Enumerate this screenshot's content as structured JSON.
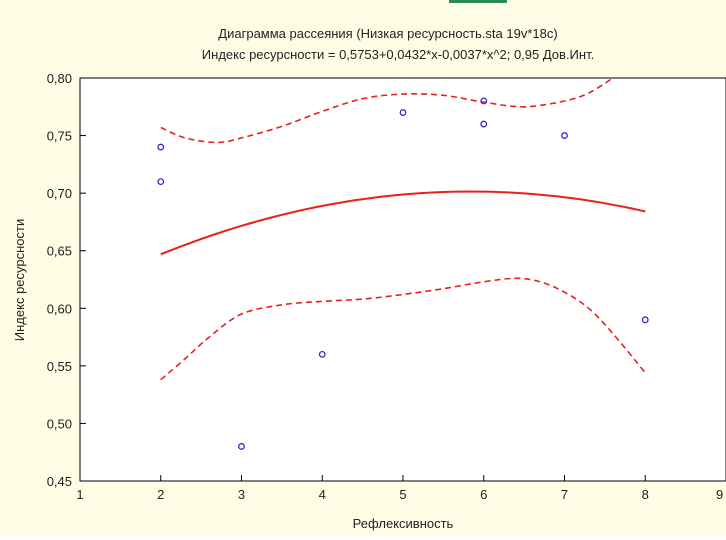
{
  "chart_data": {
    "type": "scatter",
    "title": "Диаграмма рассеяния (Низкая ресурсность.sta 19v*18c)",
    "subtitle": "Индекс ресурсности = 0,5753+0,0432*x-0,0037*x^2; 0,95 Дов.Инт.",
    "xlabel": "Рефлексивность",
    "ylabel": "Индекс ресурсности",
    "xlim": [
      1,
      9
    ],
    "ylim": [
      0.45,
      0.8
    ],
    "x_ticks": [
      1,
      2,
      3,
      4,
      5,
      6,
      7,
      8,
      9
    ],
    "x_tick_labels": [
      "1",
      "2",
      "3",
      "4",
      "5",
      "6",
      "7",
      "8",
      "9"
    ],
    "y_ticks": [
      0.45,
      0.5,
      0.55,
      0.6,
      0.65,
      0.7,
      0.75,
      0.8
    ],
    "y_tick_labels": [
      "0,45",
      "0,50",
      "0,55",
      "0,60",
      "0,65",
      "0,70",
      "0,75",
      "0,80"
    ],
    "grid": false,
    "points": [
      {
        "x": 2,
        "y": 0.74
      },
      {
        "x": 2,
        "y": 0.71
      },
      {
        "x": 3,
        "y": 0.48
      },
      {
        "x": 4,
        "y": 0.56
      },
      {
        "x": 5,
        "y": 0.77
      },
      {
        "x": 6,
        "y": 0.78
      },
      {
        "x": 6,
        "y": 0.76
      },
      {
        "x": 7,
        "y": 0.75
      },
      {
        "x": 8,
        "y": 0.59
      }
    ],
    "fit": {
      "a": 0.5753,
      "b": 0.0432,
      "c": -0.0037,
      "x_range": [
        2,
        8
      ]
    },
    "upper_band": [
      {
        "x": 2.0,
        "y": 0.757
      },
      {
        "x": 2.3,
        "y": 0.748
      },
      {
        "x": 2.7,
        "y": 0.744
      },
      {
        "x": 3.0,
        "y": 0.748
      },
      {
        "x": 3.5,
        "y": 0.758
      },
      {
        "x": 4.0,
        "y": 0.771
      },
      {
        "x": 4.5,
        "y": 0.782
      },
      {
        "x": 5.0,
        "y": 0.786
      },
      {
        "x": 5.5,
        "y": 0.785
      },
      {
        "x": 6.0,
        "y": 0.779
      },
      {
        "x": 6.5,
        "y": 0.775
      },
      {
        "x": 7.0,
        "y": 0.78
      },
      {
        "x": 7.3,
        "y": 0.787
      },
      {
        "x": 7.6,
        "y": 0.8
      }
    ],
    "lower_band": [
      {
        "x": 2.0,
        "y": 0.538
      },
      {
        "x": 2.3,
        "y": 0.556
      },
      {
        "x": 2.6,
        "y": 0.575
      },
      {
        "x": 3.0,
        "y": 0.595
      },
      {
        "x": 3.5,
        "y": 0.603
      },
      {
        "x": 4.0,
        "y": 0.606
      },
      {
        "x": 4.5,
        "y": 0.608
      },
      {
        "x": 5.0,
        "y": 0.612
      },
      {
        "x": 5.5,
        "y": 0.617
      },
      {
        "x": 6.0,
        "y": 0.623
      },
      {
        "x": 6.4,
        "y": 0.626
      },
      {
        "x": 6.7,
        "y": 0.623
      },
      {
        "x": 7.0,
        "y": 0.614
      },
      {
        "x": 7.3,
        "y": 0.6
      },
      {
        "x": 7.6,
        "y": 0.578
      },
      {
        "x": 8.0,
        "y": 0.544
      }
    ],
    "colors": {
      "background": "#fffde6",
      "plot_background": "#ffffff",
      "points": "#2222cc",
      "fit_line": "#e8201e",
      "confidence_band": "#e8201e",
      "axis": "#000000",
      "text": "#222222",
      "accent_bar": "#2e8b57"
    }
  }
}
